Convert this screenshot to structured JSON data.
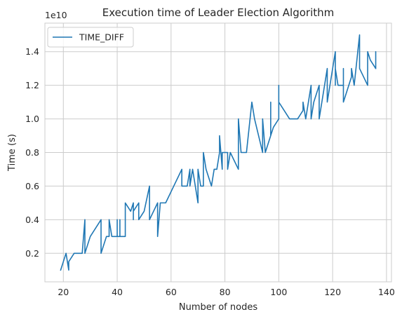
{
  "chart_data": {
    "type": "line",
    "title": "Execution time of Leader Election Algorithm",
    "xlabel": "Number of nodes",
    "ylabel": "Time (s)",
    "y_offset_text": "1e10",
    "xlim": [
      13.15,
      141.85
    ],
    "ylim": [
      0.3,
      15.7
    ],
    "x_ticks": [
      20,
      40,
      60,
      80,
      100,
      120,
      140
    ],
    "y_ticks": [
      2,
      4,
      6,
      8,
      10,
      12,
      14
    ],
    "y_tick_labels": [
      "0.2",
      "0.4",
      "0.6",
      "0.8",
      "1.0",
      "1.2",
      "1.4"
    ],
    "grid": true,
    "legend_position": "top-left",
    "series": [
      {
        "name": "TIME_DIFF",
        "color": "#1f77b4",
        "x": [
          19,
          21,
          22,
          22,
          24,
          25,
          26,
          27,
          28,
          28,
          28,
          28,
          28,
          28,
          28,
          30,
          32,
          34,
          34,
          36,
          37,
          37,
          38,
          40,
          40,
          40,
          41,
          41,
          41,
          42,
          43,
          43,
          45,
          46,
          46,
          46,
          48,
          48,
          50,
          52,
          52,
          55,
          55,
          55,
          55,
          56,
          57,
          58,
          61,
          64,
          64,
          66,
          67,
          67,
          68,
          70,
          70,
          71,
          72,
          72,
          73,
          75,
          76,
          77,
          78,
          78,
          79,
          79,
          81,
          81,
          82,
          85,
          85,
          85,
          86,
          88,
          90,
          91,
          94,
          94,
          94,
          95,
          97,
          97,
          97,
          97,
          97,
          97,
          97,
          98,
          100,
          100,
          100,
          102,
          104,
          106,
          107,
          109,
          109,
          110,
          112,
          112,
          113,
          115,
          115,
          116,
          118,
          118,
          119,
          121,
          121,
          121,
          122,
          124,
          124,
          124,
          126,
          127,
          127,
          128,
          130,
          130,
          133,
          133,
          134,
          136,
          136,
          136
        ],
        "y": [
          1,
          2,
          1,
          1.5,
          2,
          2,
          2,
          2,
          4,
          2,
          4,
          2,
          4,
          2,
          2,
          3,
          3.5,
          4,
          2,
          3,
          3,
          4,
          3,
          3,
          4,
          3,
          3,
          4,
          3,
          3,
          3,
          5,
          4.5,
          5,
          4,
          4.5,
          5,
          4,
          4.5,
          6,
          4,
          5,
          3,
          5,
          3,
          5,
          5,
          5,
          6,
          7,
          6,
          6,
          7,
          6,
          7,
          5,
          7,
          6,
          6,
          8,
          7,
          6,
          7,
          7,
          8,
          9,
          7,
          8,
          8,
          7,
          8,
          7,
          8,
          10,
          8,
          8,
          11,
          10,
          8,
          9,
          10,
          8,
          9,
          11,
          9,
          11,
          9,
          11,
          9,
          9.5,
          10,
          12,
          11,
          10.5,
          10,
          10,
          10,
          10.5,
          11,
          10,
          12,
          10,
          11,
          12,
          10,
          11,
          13,
          11,
          12,
          14,
          12,
          13,
          12,
          12,
          13,
          11,
          12,
          12.5,
          13,
          12,
          15,
          13,
          12,
          14,
          13.5,
          13,
          14,
          13
        ]
      }
    ]
  }
}
